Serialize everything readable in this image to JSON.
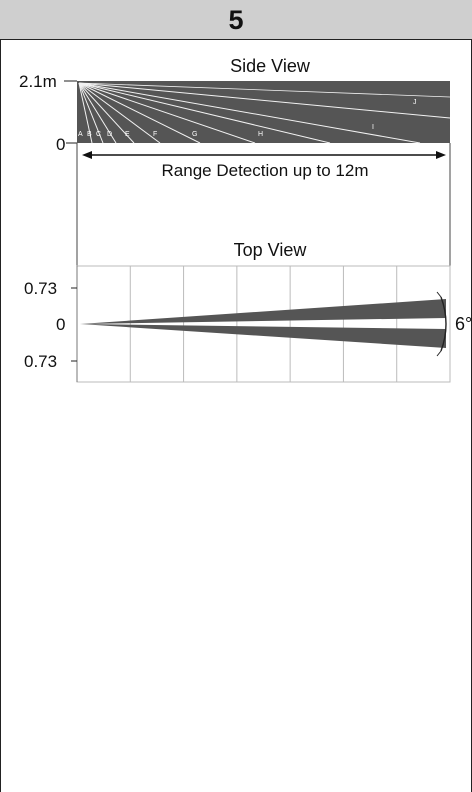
{
  "cell": {
    "number": "5"
  },
  "side_view": {
    "title": "Side View",
    "height_label": "2.1m",
    "zero_label": "0",
    "range_label": "Range Detection up to 12m",
    "zone_labels": [
      "A",
      "B",
      "C",
      "D",
      "E",
      "F",
      "G",
      "H",
      "I",
      "J"
    ]
  },
  "top_view": {
    "title": "Top View",
    "upper_label": "0.73",
    "zero_label": "0",
    "lower_label": "0.73",
    "angle_label": "6°"
  },
  "colors": {
    "beam": "#555555",
    "header": "#cfcfcf",
    "grid": "#bbbbbb",
    "border": "#222222"
  }
}
